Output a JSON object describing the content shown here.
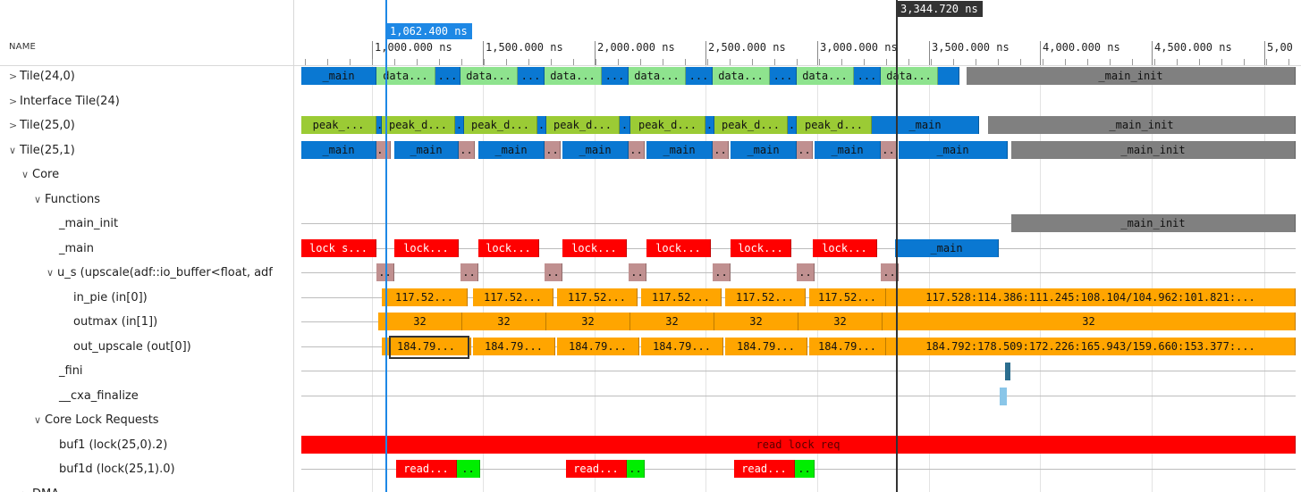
{
  "header": {
    "name_column": "NAME"
  },
  "tree": [
    {
      "label": "Tile(24,0)",
      "chevron": ">"
    },
    {
      "label": "Interface Tile(24)",
      "chevron": ">"
    },
    {
      "label": "Tile(25,0)",
      "chevron": ">"
    },
    {
      "label": "Tile(25,1)",
      "chevron": "v"
    },
    {
      "label": "Core",
      "chevron": "v"
    },
    {
      "label": "Functions",
      "chevron": "v"
    },
    {
      "label": "_main_init",
      "chevron": ""
    },
    {
      "label": "_main",
      "chevron": ""
    },
    {
      "label": "u_s (upscale(adf::io_buffer<float, adf",
      "chevron": "v"
    },
    {
      "label": "in_pie (in[0])",
      "chevron": ""
    },
    {
      "label": "outmax (in[1])",
      "chevron": ""
    },
    {
      "label": "out_upscale (out[0])",
      "chevron": ""
    },
    {
      "label": "_fini",
      "chevron": ""
    },
    {
      "label": "__cxa_finalize",
      "chevron": ""
    },
    {
      "label": "Core Lock Requests",
      "chevron": "v"
    },
    {
      "label": "buf1 (lock(25,0).2)",
      "chevron": ""
    },
    {
      "label": "buf1d (lock(25,1).0)",
      "chevron": ""
    },
    {
      "label": "DMA",
      "chevron": ">"
    }
  ],
  "timeline": {
    "axis_ticks": [
      "1,000.000 ns",
      "1,500.000 ns",
      "2,000.000 ns",
      "2,500.000 ns",
      "3,000.000 ns",
      "3,500.000 ns",
      "4,000.000 ns",
      "4,500.000 ns",
      "5,00"
    ],
    "cursor_blue_label": "1,062.400 ns",
    "cursor_dark_label": "3,344.720 ns",
    "colors": {
      "blue": "#0a78d2",
      "green": "#8ee38e",
      "olive": "#9bcb35",
      "gray": "#808080",
      "red": "#ff0000",
      "pink": "#c09090",
      "orange": "#ffa500",
      "lime": "#00ee00",
      "cursor_blue": "#1e88e5",
      "cursor_dark": "#333333"
    }
  },
  "rows": {
    "tile_24_0": [
      {
        "t": "_main",
        "c": "blue"
      },
      {
        "t": "data...",
        "c": "green"
      },
      {
        "t": "...",
        "c": "blue"
      },
      {
        "t": "data...",
        "c": "green"
      },
      {
        "t": "...",
        "c": "blue"
      },
      {
        "t": "data...",
        "c": "green"
      },
      {
        "t": "...",
        "c": "blue"
      },
      {
        "t": "data...",
        "c": "green"
      },
      {
        "t": "...",
        "c": "blue"
      },
      {
        "t": "data...",
        "c": "green"
      },
      {
        "t": "...",
        "c": "blue"
      },
      {
        "t": "data...",
        "c": "green"
      },
      {
        "t": "...",
        "c": "blue"
      },
      {
        "t": "data...",
        "c": "green"
      },
      {
        "t": "",
        "c": "blue"
      },
      {
        "t": "_main_init",
        "c": "gray"
      }
    ],
    "tile_25_0": [
      {
        "t": "peak_...",
        "c": "olive"
      },
      {
        "t": ".",
        "c": "blue"
      },
      {
        "t": "peak_d...",
        "c": "olive"
      },
      {
        "t": ".",
        "c": "blue"
      },
      {
        "t": "peak_d...",
        "c": "olive"
      },
      {
        "t": ".",
        "c": "blue"
      },
      {
        "t": "peak_d...",
        "c": "olive"
      },
      {
        "t": ".",
        "c": "blue"
      },
      {
        "t": "peak_d...",
        "c": "olive"
      },
      {
        "t": ".",
        "c": "blue"
      },
      {
        "t": "peak_d...",
        "c": "olive"
      },
      {
        "t": ".",
        "c": "blue"
      },
      {
        "t": "peak_d...",
        "c": "olive"
      },
      {
        "t": "_main",
        "c": "blue"
      },
      {
        "t": "_main_init",
        "c": "gray"
      }
    ],
    "tile_25_1": [
      {
        "t": "_main",
        "c": "blue"
      },
      {
        "t": "..",
        "c": "pink"
      },
      {
        "t": "_main",
        "c": "blue"
      },
      {
        "t": "..",
        "c": "pink"
      },
      {
        "t": "_main",
        "c": "blue"
      },
      {
        "t": "..",
        "c": "pink"
      },
      {
        "t": "_main",
        "c": "blue"
      },
      {
        "t": "..",
        "c": "pink"
      },
      {
        "t": "_main",
        "c": "blue"
      },
      {
        "t": "..",
        "c": "pink"
      },
      {
        "t": "_main",
        "c": "blue"
      },
      {
        "t": "..",
        "c": "pink"
      },
      {
        "t": "_main",
        "c": "blue"
      },
      {
        "t": "..",
        "c": "pink"
      },
      {
        "t": "_main",
        "c": "blue"
      },
      {
        "t": "_main_init",
        "c": "gray"
      }
    ],
    "main_init": [
      {
        "t": "_main_init",
        "c": "gray"
      }
    ],
    "main": [
      {
        "t": "lock s...",
        "c": "red"
      },
      {
        "t": "lock...",
        "c": "red"
      },
      {
        "t": "lock...",
        "c": "red"
      },
      {
        "t": "lock...",
        "c": "red"
      },
      {
        "t": "lock...",
        "c": "red"
      },
      {
        "t": "lock...",
        "c": "red"
      },
      {
        "t": "lock...",
        "c": "red"
      },
      {
        "t": "_main",
        "c": "blue"
      }
    ],
    "u_s": [
      {
        "t": "..",
        "c": "pink"
      },
      {
        "t": "..",
        "c": "pink"
      },
      {
        "t": "..",
        "c": "pink"
      },
      {
        "t": "..",
        "c": "pink"
      },
      {
        "t": "..",
        "c": "pink"
      },
      {
        "t": "..",
        "c": "pink"
      },
      {
        "t": "..",
        "c": "pink"
      }
    ],
    "in_pie": [
      {
        "t": "117.52...",
        "c": "orange"
      },
      {
        "t": "117.52...",
        "c": "orange"
      },
      {
        "t": "117.52...",
        "c": "orange"
      },
      {
        "t": "117.52...",
        "c": "orange"
      },
      {
        "t": "117.52...",
        "c": "orange"
      },
      {
        "t": "117.52...",
        "c": "orange"
      },
      {
        "t": "117.528:114.386:111.245:108.104/104.962:101.821:...",
        "c": "orange"
      }
    ],
    "outmax": [
      {
        "t": "32",
        "c": "orange"
      },
      {
        "t": "32",
        "c": "orange"
      },
      {
        "t": "32",
        "c": "orange"
      },
      {
        "t": "32",
        "c": "orange"
      },
      {
        "t": "32",
        "c": "orange"
      },
      {
        "t": "32",
        "c": "orange"
      },
      {
        "t": "32",
        "c": "orange"
      }
    ],
    "out_upscale": [
      {
        "t": "184.79...",
        "c": "orange"
      },
      {
        "t": "184.79...",
        "c": "orange"
      },
      {
        "t": "184.79...",
        "c": "orange"
      },
      {
        "t": "184.79...",
        "c": "orange"
      },
      {
        "t": "184.79...",
        "c": "orange"
      },
      {
        "t": "184.79...",
        "c": "orange"
      },
      {
        "t": "184.792:178.509:172.226:165.943/159.660:153.377:...",
        "c": "orange"
      }
    ],
    "buf1": [
      {
        "t": "read lock req",
        "c": "red"
      }
    ],
    "buf1d": [
      {
        "t": "read...",
        "c": "red"
      },
      {
        "t": "..",
        "c": "lime"
      },
      {
        "t": "read...",
        "c": "red"
      },
      {
        "t": "..",
        "c": "lime"
      },
      {
        "t": "read...",
        "c": "red"
      },
      {
        "t": "..",
        "c": "lime"
      }
    ]
  }
}
